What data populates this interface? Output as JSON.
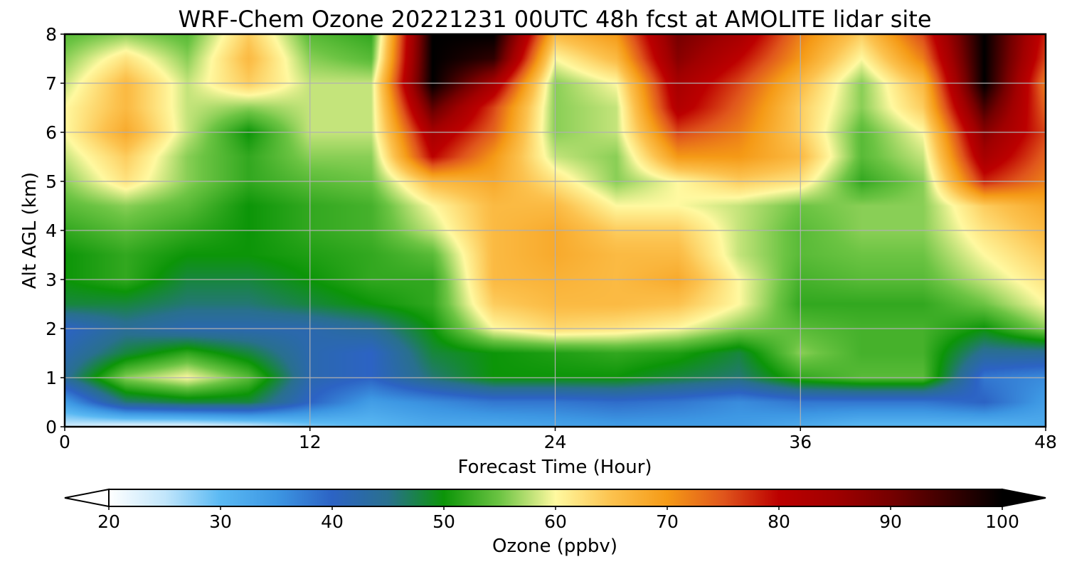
{
  "chart_data": {
    "type": "heatmap",
    "title": "WRF-Chem Ozone  20221231 00UTC 48h fcst at AMOLITE lidar site",
    "xlabel": "Forecast Time (Hour)",
    "ylabel": "Alt AGL (km)",
    "xlim": [
      0,
      48
    ],
    "ylim": [
      0,
      8
    ],
    "x_ticks": [
      0,
      12,
      24,
      36,
      48
    ],
    "y_ticks": [
      0,
      1,
      2,
      3,
      4,
      5,
      6,
      7,
      8
    ],
    "grid": true,
    "x_hours": [
      0,
      3,
      6,
      9,
      12,
      15,
      18,
      21,
      24,
      27,
      30,
      33,
      36,
      39,
      42,
      45,
      48
    ],
    "y_km": [
      0,
      0.5,
      1,
      1.5,
      2,
      2.5,
      3,
      3.5,
      4,
      4.5,
      5,
      5.5,
      6,
      6.5,
      7,
      7.5,
      8
    ],
    "ozone_ppbv": [
      [
        24,
        22,
        22,
        24,
        28,
        30,
        32,
        32,
        33,
        34,
        34,
        34,
        32,
        30,
        30,
        30,
        32
      ],
      [
        34,
        46,
        48,
        48,
        40,
        34,
        36,
        38,
        38,
        39,
        38,
        36,
        38,
        38,
        38,
        40,
        34
      ],
      [
        44,
        56,
        60,
        54,
        42,
        40,
        46,
        50,
        50,
        50,
        48,
        46,
        52,
        54,
        54,
        38,
        36
      ],
      [
        42,
        48,
        52,
        48,
        42,
        40,
        48,
        50,
        51,
        52,
        51,
        48,
        56,
        53,
        53,
        44,
        44
      ],
      [
        40,
        44,
        42,
        42,
        42,
        44,
        50,
        60,
        63,
        62,
        60,
        56,
        54,
        53,
        53,
        50,
        56
      ],
      [
        48,
        48,
        46,
        46,
        48,
        50,
        52,
        64,
        66,
        66,
        65,
        60,
        52,
        52,
        52,
        55,
        60
      ],
      [
        50,
        52,
        48,
        48,
        50,
        52,
        52,
        66,
        67,
        66,
        68,
        60,
        53,
        54,
        54,
        58,
        62
      ],
      [
        50,
        52,
        50,
        50,
        51,
        52,
        54,
        66,
        68,
        66,
        66,
        58,
        54,
        55,
        55,
        60,
        64
      ],
      [
        52,
        54,
        52,
        50,
        52,
        53,
        58,
        66,
        68,
        64,
        64,
        58,
        54,
        56,
        56,
        62,
        66
      ],
      [
        54,
        56,
        54,
        50,
        52,
        53,
        60,
        66,
        66,
        60,
        60,
        58,
        55,
        56,
        56,
        64,
        68
      ],
      [
        56,
        62,
        56,
        52,
        54,
        55,
        66,
        68,
        62,
        56,
        60,
        64,
        62,
        52,
        56,
        78,
        72
      ],
      [
        58,
        64,
        56,
        52,
        56,
        56,
        80,
        70,
        58,
        56,
        70,
        70,
        66,
        54,
        58,
        84,
        74
      ],
      [
        60,
        68,
        58,
        50,
        58,
        58,
        84,
        74,
        56,
        58,
        76,
        72,
        64,
        54,
        60,
        88,
        76
      ],
      [
        60,
        66,
        58,
        56,
        58,
        58,
        92,
        76,
        56,
        58,
        82,
        74,
        64,
        56,
        64,
        94,
        74
      ],
      [
        58,
        66,
        58,
        64,
        58,
        58,
        100,
        84,
        56,
        60,
        84,
        76,
        66,
        56,
        66,
        100,
        72
      ],
      [
        56,
        62,
        56,
        66,
        56,
        54,
        100,
        96,
        60,
        66,
        88,
        80,
        70,
        60,
        72,
        100,
        76
      ],
      [
        54,
        56,
        54,
        64,
        54,
        52,
        100,
        100,
        66,
        70,
        90,
        84,
        72,
        64,
        76,
        100,
        78
      ]
    ]
  },
  "colorbar": {
    "label": "Ozone  (ppbv)",
    "ticks": [
      20,
      30,
      40,
      50,
      60,
      70,
      80,
      90,
      100
    ],
    "min": 20,
    "max": 100,
    "extend": "both",
    "stops": [
      [
        20,
        "#ffffff"
      ],
      [
        25,
        "#c2e6fb"
      ],
      [
        30,
        "#5ab9f3"
      ],
      [
        35,
        "#3d97e3"
      ],
      [
        40,
        "#2c63c4"
      ],
      [
        45,
        "#29708e"
      ],
      [
        50,
        "#0c9508"
      ],
      [
        55,
        "#6cc443"
      ],
      [
        60,
        "#fff9a0"
      ],
      [
        65,
        "#fcc24e"
      ],
      [
        70,
        "#f59a16"
      ],
      [
        75,
        "#e0561c"
      ],
      [
        80,
        "#bc0000"
      ],
      [
        85,
        "#a10000"
      ],
      [
        90,
        "#760000"
      ],
      [
        95,
        "#3c0000"
      ],
      [
        100,
        "#000000"
      ]
    ]
  }
}
